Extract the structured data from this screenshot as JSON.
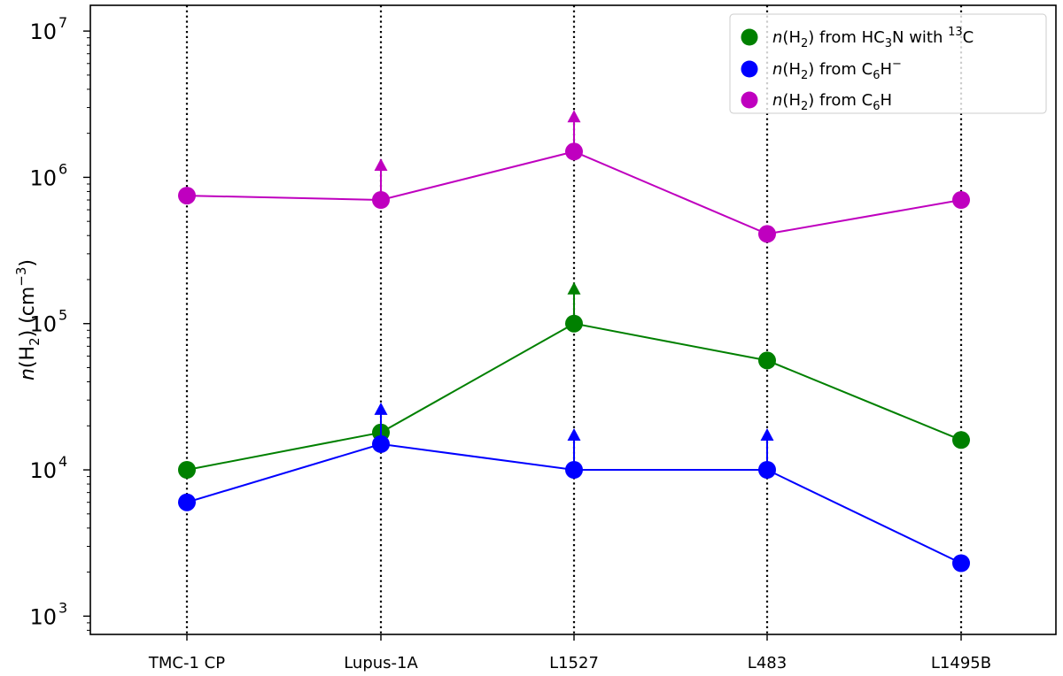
{
  "chart_data": {
    "type": "line",
    "title": "",
    "xlabel": "",
    "ylabel": "n(H2) (cm−3)",
    "yscale": "log",
    "ylim": [
      750,
      15000000
    ],
    "grid": false,
    "legend_location": "top-right",
    "categories": [
      "TMC-1 CP",
      "Lupus-1A",
      "L1527",
      "L483",
      "L1495B"
    ],
    "vertical_dotted_lines_at_categories": true,
    "y_ticks": [
      {
        "value": 1000,
        "base": "10",
        "exp": "3"
      },
      {
        "value": 10000,
        "base": "10",
        "exp": "4"
      },
      {
        "value": 100000,
        "base": "10",
        "exp": "5"
      },
      {
        "value": 1000000,
        "base": "10",
        "exp": "6"
      },
      {
        "value": 10000000,
        "base": "10",
        "exp": "7"
      }
    ],
    "series": [
      {
        "name": "n(H2) from HC3N with 13C",
        "color": "#008000",
        "values": [
          10000,
          18000,
          100000,
          56000,
          16000
        ],
        "lower_limit": [
          false,
          false,
          true,
          false,
          false
        ]
      },
      {
        "name": "n(H2) from C6H−",
        "color": "#0000ff",
        "values": [
          6000,
          15000,
          10000,
          10000,
          2300
        ],
        "lower_limit": [
          false,
          true,
          true,
          true,
          false
        ]
      },
      {
        "name": "n(H2) from C6H",
        "color": "#bf00bf",
        "values": [
          750000,
          700000,
          1500000,
          410000,
          700000
        ],
        "lower_limit": [
          false,
          true,
          true,
          false,
          false
        ]
      }
    ]
  }
}
